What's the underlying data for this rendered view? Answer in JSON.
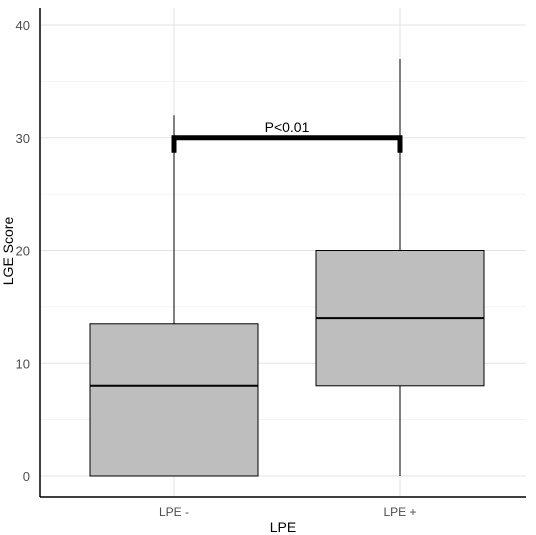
{
  "chart_data": {
    "type": "box",
    "xlabel": "LPE",
    "ylabel": "LGE Score",
    "ylim": [
      0,
      40
    ],
    "yticks": [
      0,
      10,
      20,
      30,
      40
    ],
    "categories": [
      "LPE -",
      "LPE +"
    ],
    "boxes": [
      {
        "category": "LPE -",
        "min": 0,
        "q1": 0,
        "median": 8,
        "q3": 13.5,
        "max": 32
      },
      {
        "category": "LPE +",
        "min": 0,
        "q1": 8,
        "median": 14,
        "q3": 20,
        "max": 37
      }
    ],
    "annotation": {
      "text": "P<0.01",
      "y": 30
    },
    "grid": true,
    "colors": {
      "box_fill": "#bebebe",
      "grid": "#e3e3e3",
      "axis": "#000000"
    }
  }
}
